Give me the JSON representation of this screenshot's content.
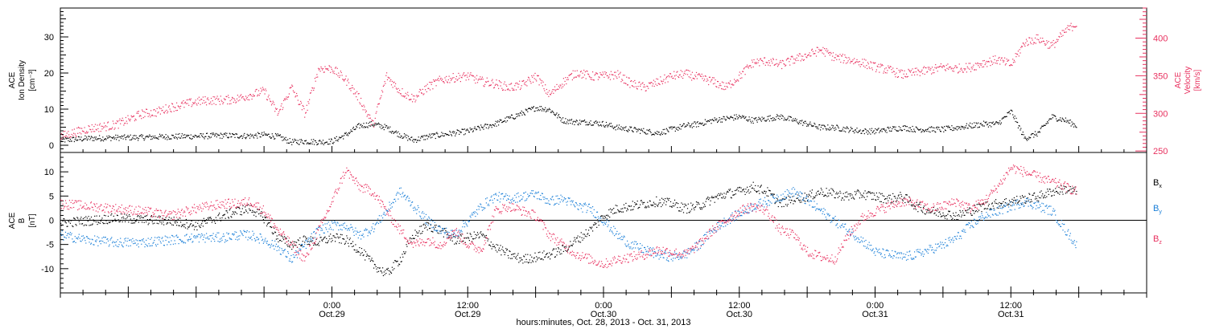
{
  "figure": {
    "xaxis_title": "hours:minutes, Oct. 28, 2013 - Oct. 31, 2013",
    "ticks": [
      {
        "time": "0:00",
        "date": "Oct.29",
        "day": 1.0
      },
      {
        "time": "12:00",
        "date": "Oct.29",
        "day": 1.5
      },
      {
        "time": "0:00",
        "date": "Oct.30",
        "day": 2.0
      },
      {
        "time": "12:00",
        "date": "Oct.30",
        "day": 2.5
      },
      {
        "time": "0:00",
        "date": "Oct.31",
        "day": 3.0
      },
      {
        "time": "12:00",
        "date": "Oct.31",
        "day": 3.5
      }
    ]
  },
  "colors": {
    "black": "#000000",
    "pink": "#e8315f",
    "blue": "#1a7fd8"
  },
  "chart_data": [
    {
      "type": "scatter",
      "panel": "top",
      "xlim_days": [
        0.0,
        4.0
      ],
      "ylabel_left": [
        "ACE",
        "Ion Density",
        "[cm⁻³]"
      ],
      "ylabel_right": [
        "ACE",
        "Velocity",
        "[km/s]"
      ],
      "ylim_left": [
        -2,
        38
      ],
      "ylim_right": [
        248,
        440
      ],
      "yticks_left": [
        "0",
        "10",
        "20",
        "30"
      ],
      "yticks_right": [
        "250",
        "300",
        "350",
        "400"
      ],
      "series": [
        {
          "key": "density",
          "axis": "left",
          "color": "black",
          "x": [
            0.0,
            0.1,
            0.2,
            0.3,
            0.4,
            0.5,
            0.6,
            0.7,
            0.75,
            0.8,
            0.85,
            0.9,
            0.95,
            1.0,
            1.05,
            1.1,
            1.15,
            1.2,
            1.25,
            1.3,
            1.35,
            1.4,
            1.45,
            1.5,
            1.55,
            1.6,
            1.65,
            1.7,
            1.75,
            1.8,
            1.85,
            1.9,
            1.95,
            2.0,
            2.05,
            2.1,
            2.15,
            2.2,
            2.25,
            2.3,
            2.35,
            2.4,
            2.45,
            2.5,
            2.55,
            2.6,
            2.65,
            2.7,
            2.75,
            2.8,
            2.85,
            2.9,
            2.95,
            3.0,
            3.05,
            3.1,
            3.15,
            3.2,
            3.25,
            3.3,
            3.35,
            3.4,
            3.45,
            3.5,
            3.55,
            3.6,
            3.65,
            3.7,
            3.74
          ],
          "y": [
            1.5,
            2.0,
            2.2,
            2.3,
            2.5,
            2.6,
            2.8,
            2.7,
            3.0,
            2.5,
            1.0,
            1.2,
            1.0,
            1.2,
            3.0,
            5.5,
            6.0,
            5.0,
            3.0,
            1.5,
            2.5,
            3.0,
            3.5,
            4.0,
            5.0,
            6.0,
            7.5,
            9.0,
            10.5,
            10.0,
            7.0,
            6.5,
            6.5,
            6.0,
            5.0,
            4.5,
            4.0,
            3.5,
            4.5,
            5.5,
            6.0,
            7.0,
            7.5,
            8.0,
            7.0,
            7.5,
            8.0,
            7.0,
            6.0,
            5.0,
            5.0,
            4.5,
            4.0,
            4.0,
            4.5,
            5.0,
            4.5,
            4.5,
            4.5,
            5.0,
            5.5,
            6.0,
            6.0,
            9.5,
            2.0,
            3.5,
            8.0,
            7.0,
            5.5
          ]
        },
        {
          "key": "velocity",
          "axis": "right",
          "color": "pink",
          "x": [
            0.0,
            0.1,
            0.2,
            0.25,
            0.3,
            0.35,
            0.4,
            0.45,
            0.5,
            0.55,
            0.6,
            0.65,
            0.7,
            0.75,
            0.8,
            0.85,
            0.9,
            0.95,
            1.0,
            1.05,
            1.1,
            1.15,
            1.2,
            1.25,
            1.3,
            1.35,
            1.4,
            1.45,
            1.5,
            1.55,
            1.6,
            1.65,
            1.7,
            1.75,
            1.8,
            1.85,
            1.9,
            1.95,
            2.0,
            2.05,
            2.1,
            2.15,
            2.2,
            2.25,
            2.3,
            2.35,
            2.4,
            2.45,
            2.5,
            2.55,
            2.6,
            2.65,
            2.7,
            2.75,
            2.8,
            2.85,
            2.9,
            2.95,
            3.0,
            3.05,
            3.1,
            3.15,
            3.2,
            3.25,
            3.3,
            3.35,
            3.4,
            3.45,
            3.5,
            3.55,
            3.6,
            3.65,
            3.7,
            3.74
          ],
          "y": [
            270,
            280,
            285,
            292,
            300,
            302,
            308,
            312,
            316,
            318,
            318,
            320,
            325,
            330,
            300,
            335,
            300,
            360,
            360,
            345,
            320,
            285,
            350,
            330,
            320,
            335,
            345,
            348,
            350,
            343,
            340,
            335,
            338,
            350,
            325,
            342,
            355,
            350,
            350,
            352,
            340,
            335,
            342,
            350,
            353,
            348,
            343,
            335,
            350,
            368,
            370,
            365,
            372,
            378,
            385,
            375,
            372,
            368,
            362,
            358,
            352,
            355,
            358,
            362,
            360,
            362,
            368,
            372,
            365,
            395,
            400,
            390,
            410,
            420
          ]
        }
      ]
    },
    {
      "type": "scatter",
      "panel": "bottom",
      "xlim_days": [
        0.0,
        4.0
      ],
      "ylabel_left": [
        "ACE",
        "B",
        "[nT]"
      ],
      "ylim": [
        -15,
        14
      ],
      "yticks": [
        "-10",
        "-5",
        "0",
        "5",
        "10"
      ],
      "legend": [
        {
          "label": "B",
          "sub": "x",
          "color": "black"
        },
        {
          "label": "B",
          "sub": "y",
          "color": "blue"
        },
        {
          "label": "B",
          "sub": "z",
          "color": "pink"
        }
      ],
      "series": [
        {
          "key": "Bx",
          "color": "black",
          "x": [
            0.0,
            0.1,
            0.2,
            0.3,
            0.4,
            0.5,
            0.6,
            0.65,
            0.7,
            0.75,
            0.8,
            0.85,
            0.9,
            0.95,
            1.0,
            1.05,
            1.1,
            1.15,
            1.2,
            1.25,
            1.3,
            1.35,
            1.4,
            1.45,
            1.5,
            1.55,
            1.6,
            1.65,
            1.7,
            1.75,
            1.8,
            1.85,
            1.9,
            1.95,
            2.0,
            2.05,
            2.1,
            2.15,
            2.2,
            2.25,
            2.3,
            2.35,
            2.4,
            2.45,
            2.5,
            2.55,
            2.6,
            2.65,
            2.7,
            2.75,
            2.8,
            2.85,
            2.9,
            2.95,
            3.0,
            3.05,
            3.1,
            3.15,
            3.2,
            3.25,
            3.3,
            3.35,
            3.4,
            3.45,
            3.5,
            3.55,
            3.6,
            3.65,
            3.7,
            3.74
          ],
          "y": [
            -0.5,
            0.0,
            0.5,
            0.2,
            0.0,
            -1.0,
            1.0,
            2.0,
            2.5,
            0.5,
            -3.5,
            -5.0,
            -4.0,
            -4.5,
            -3.5,
            -4.0,
            -6.0,
            -9.0,
            -11.0,
            -8.0,
            -3.0,
            -1.0,
            -2.0,
            -4.0,
            -3.5,
            -3.0,
            -5.5,
            -7.0,
            -8.0,
            -7.5,
            -7.0,
            -6.0,
            -4.0,
            -2.0,
            1.0,
            2.5,
            3.0,
            3.5,
            4.0,
            3.5,
            2.5,
            3.0,
            4.5,
            5.5,
            6.0,
            7.0,
            6.0,
            3.5,
            4.5,
            5.0,
            6.0,
            5.5,
            5.0,
            5.5,
            5.0,
            4.5,
            5.0,
            3.0,
            2.0,
            1.5,
            1.0,
            2.0,
            3.0,
            3.5,
            4.0,
            4.5,
            5.0,
            6.0,
            6.5,
            6.0
          ]
        },
        {
          "key": "By",
          "color": "blue",
          "x": [
            0.0,
            0.1,
            0.2,
            0.3,
            0.4,
            0.5,
            0.6,
            0.65,
            0.7,
            0.75,
            0.8,
            0.85,
            0.9,
            0.95,
            1.0,
            1.05,
            1.1,
            1.15,
            1.2,
            1.25,
            1.3,
            1.35,
            1.4,
            1.45,
            1.5,
            1.55,
            1.6,
            1.65,
            1.7,
            1.75,
            1.8,
            1.85,
            1.9,
            1.95,
            2.0,
            2.05,
            2.1,
            2.15,
            2.2,
            2.25,
            2.3,
            2.35,
            2.4,
            2.45,
            2.5,
            2.55,
            2.6,
            2.65,
            2.7,
            2.75,
            2.8,
            2.85,
            2.9,
            2.95,
            3.0,
            3.05,
            3.1,
            3.15,
            3.2,
            3.25,
            3.3,
            3.35,
            3.4,
            3.45,
            3.5,
            3.55,
            3.6,
            3.65,
            3.7,
            3.74
          ],
          "y": [
            -3.0,
            -4.0,
            -4.5,
            -4.5,
            -4.0,
            -3.5,
            -3.5,
            -3.0,
            -3.0,
            -4.0,
            -5.5,
            -8.0,
            -5.0,
            -2.0,
            -1.0,
            -1.0,
            -3.0,
            -1.5,
            2.0,
            6.0,
            3.0,
            0.0,
            -2.0,
            -3.0,
            0.0,
            3.0,
            5.0,
            4.5,
            5.0,
            5.5,
            4.0,
            4.5,
            3.0,
            2.5,
            0.0,
            -3.0,
            -5.0,
            -6.0,
            -7.0,
            -7.5,
            -7.0,
            -5.0,
            -2.0,
            0.0,
            1.5,
            3.0,
            4.0,
            5.0,
            6.0,
            4.0,
            2.0,
            0.0,
            -2.0,
            -4.0,
            -6.5,
            -7.0,
            -7.5,
            -7.0,
            -6.0,
            -5.0,
            -3.5,
            -1.0,
            1.0,
            2.0,
            3.0,
            4.0,
            3.0,
            2.0,
            -2.0,
            -5.0
          ]
        },
        {
          "key": "Bz",
          "color": "pink",
          "x": [
            0.0,
            0.1,
            0.2,
            0.3,
            0.4,
            0.5,
            0.6,
            0.65,
            0.7,
            0.75,
            0.8,
            0.85,
            0.9,
            0.95,
            1.0,
            1.05,
            1.1,
            1.15,
            1.2,
            1.25,
            1.3,
            1.35,
            1.4,
            1.45,
            1.5,
            1.55,
            1.6,
            1.65,
            1.7,
            1.75,
            1.8,
            1.85,
            1.9,
            1.95,
            2.0,
            2.05,
            2.1,
            2.15,
            2.2,
            2.25,
            2.3,
            2.35,
            2.4,
            2.45,
            2.5,
            2.55,
            2.6,
            2.65,
            2.7,
            2.75,
            2.8,
            2.85,
            2.9,
            2.95,
            3.0,
            3.05,
            3.1,
            3.15,
            3.2,
            3.25,
            3.3,
            3.35,
            3.4,
            3.45,
            3.5,
            3.55,
            3.6,
            3.65,
            3.7,
            3.74
          ],
          "y": [
            3.5,
            3.0,
            2.5,
            2.0,
            1.0,
            2.5,
            3.5,
            3.5,
            4.0,
            2.0,
            -2.0,
            -5.0,
            -8.0,
            -2.0,
            4.0,
            10.5,
            7.0,
            6.0,
            2.0,
            -2.0,
            -5.0,
            -4.0,
            -5.0,
            -2.0,
            -5.0,
            -6.0,
            2.0,
            3.0,
            2.0,
            1.0,
            -3.0,
            -5.0,
            -7.0,
            -8.0,
            -9.0,
            -8.0,
            -7.5,
            -7.0,
            -6.0,
            -6.5,
            -7.0,
            -5.0,
            -2.0,
            0.0,
            2.0,
            3.0,
            2.0,
            -2.0,
            -3.0,
            -6.5,
            -7.5,
            -8.0,
            -3.0,
            0.5,
            2.0,
            3.0,
            4.0,
            3.5,
            2.5,
            3.0,
            4.0,
            2.5,
            4.0,
            7.0,
            11.0,
            10.0,
            9.0,
            8.0,
            7.0,
            6.0
          ]
        }
      ]
    }
  ]
}
